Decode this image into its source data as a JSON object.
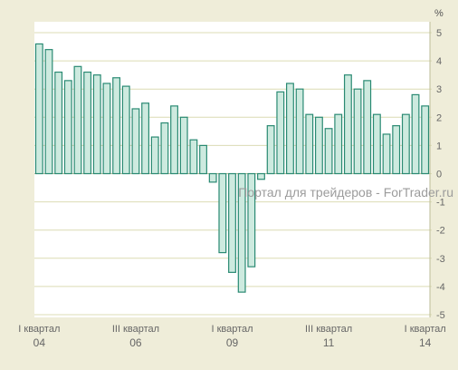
{
  "chart_data": {
    "type": "bar",
    "y_unit_label": "%",
    "ylim": [
      -5,
      5
    ],
    "yticks": [
      5,
      4,
      3,
      2,
      1,
      0,
      -1,
      -2,
      -3,
      -4,
      -5
    ],
    "grid": true,
    "x_tick_labels": [
      {
        "quarter": "I квартал",
        "year": "04",
        "bar_index": 0
      },
      {
        "quarter": "III квартал",
        "year": "06",
        "bar_index": 10
      },
      {
        "quarter": "I квартал",
        "year": "09",
        "bar_index": 20
      },
      {
        "quarter": "III квартал",
        "year": "11",
        "bar_index": 30
      },
      {
        "quarter": "I квартал",
        "year": "14",
        "bar_index": 40
      }
    ],
    "values": [
      4.6,
      4.4,
      3.6,
      3.3,
      3.8,
      3.6,
      3.5,
      3.2,
      3.4,
      3.1,
      2.3,
      2.5,
      1.3,
      1.8,
      2.4,
      2.0,
      1.2,
      1.0,
      -0.3,
      -2.8,
      -3.5,
      -4.2,
      -3.3,
      -0.2,
      1.7,
      2.9,
      3.2,
      3.0,
      2.1,
      2.0,
      1.6,
      2.1,
      3.5,
      3.0,
      3.3,
      2.1,
      1.4,
      1.7,
      2.1,
      2.8,
      2.4
    ],
    "colors": {
      "bar_fill": "#cdeadf",
      "bar_stroke": "#2a8a73",
      "plot_bg": "#ffffff",
      "grid": "#dcdcb4",
      "page_bg": "#efedd9",
      "text": "#666666"
    }
  },
  "watermark": "Портал для трейдеров - ForTrader.ru"
}
